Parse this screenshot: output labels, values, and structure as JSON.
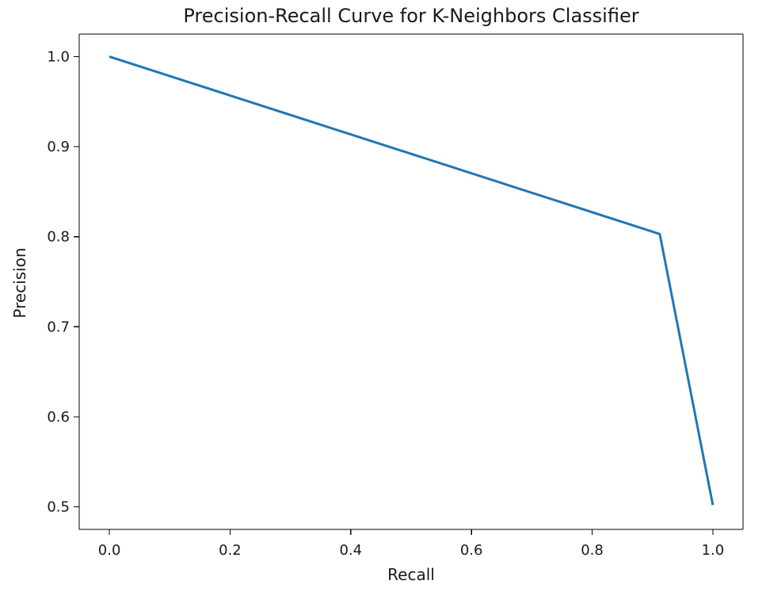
{
  "chart_data": {
    "type": "line",
    "title": "Precision-Recall Curve for K-Neighbors Classifier",
    "xlabel": "Recall",
    "ylabel": "Precision",
    "xlim": [
      -0.05,
      1.05
    ],
    "ylim": [
      0.475,
      1.025
    ],
    "xticks": [
      0.0,
      0.2,
      0.4,
      0.6,
      0.8,
      1.0
    ],
    "xtick_labels": [
      "0.0",
      "0.2",
      "0.4",
      "0.6",
      "0.8",
      "1.0"
    ],
    "yticks": [
      0.5,
      0.6,
      0.7,
      0.8,
      0.9,
      1.0
    ],
    "ytick_labels": [
      "0.5",
      "0.6",
      "0.7",
      "0.8",
      "0.9",
      "1.0"
    ],
    "grid": false,
    "legend": "none",
    "series": [
      {
        "x": [
          0.0,
          0.912,
          1.0
        ],
        "y": [
          1.0,
          0.803,
          0.502
        ],
        "color": "#1f77b4"
      }
    ]
  }
}
